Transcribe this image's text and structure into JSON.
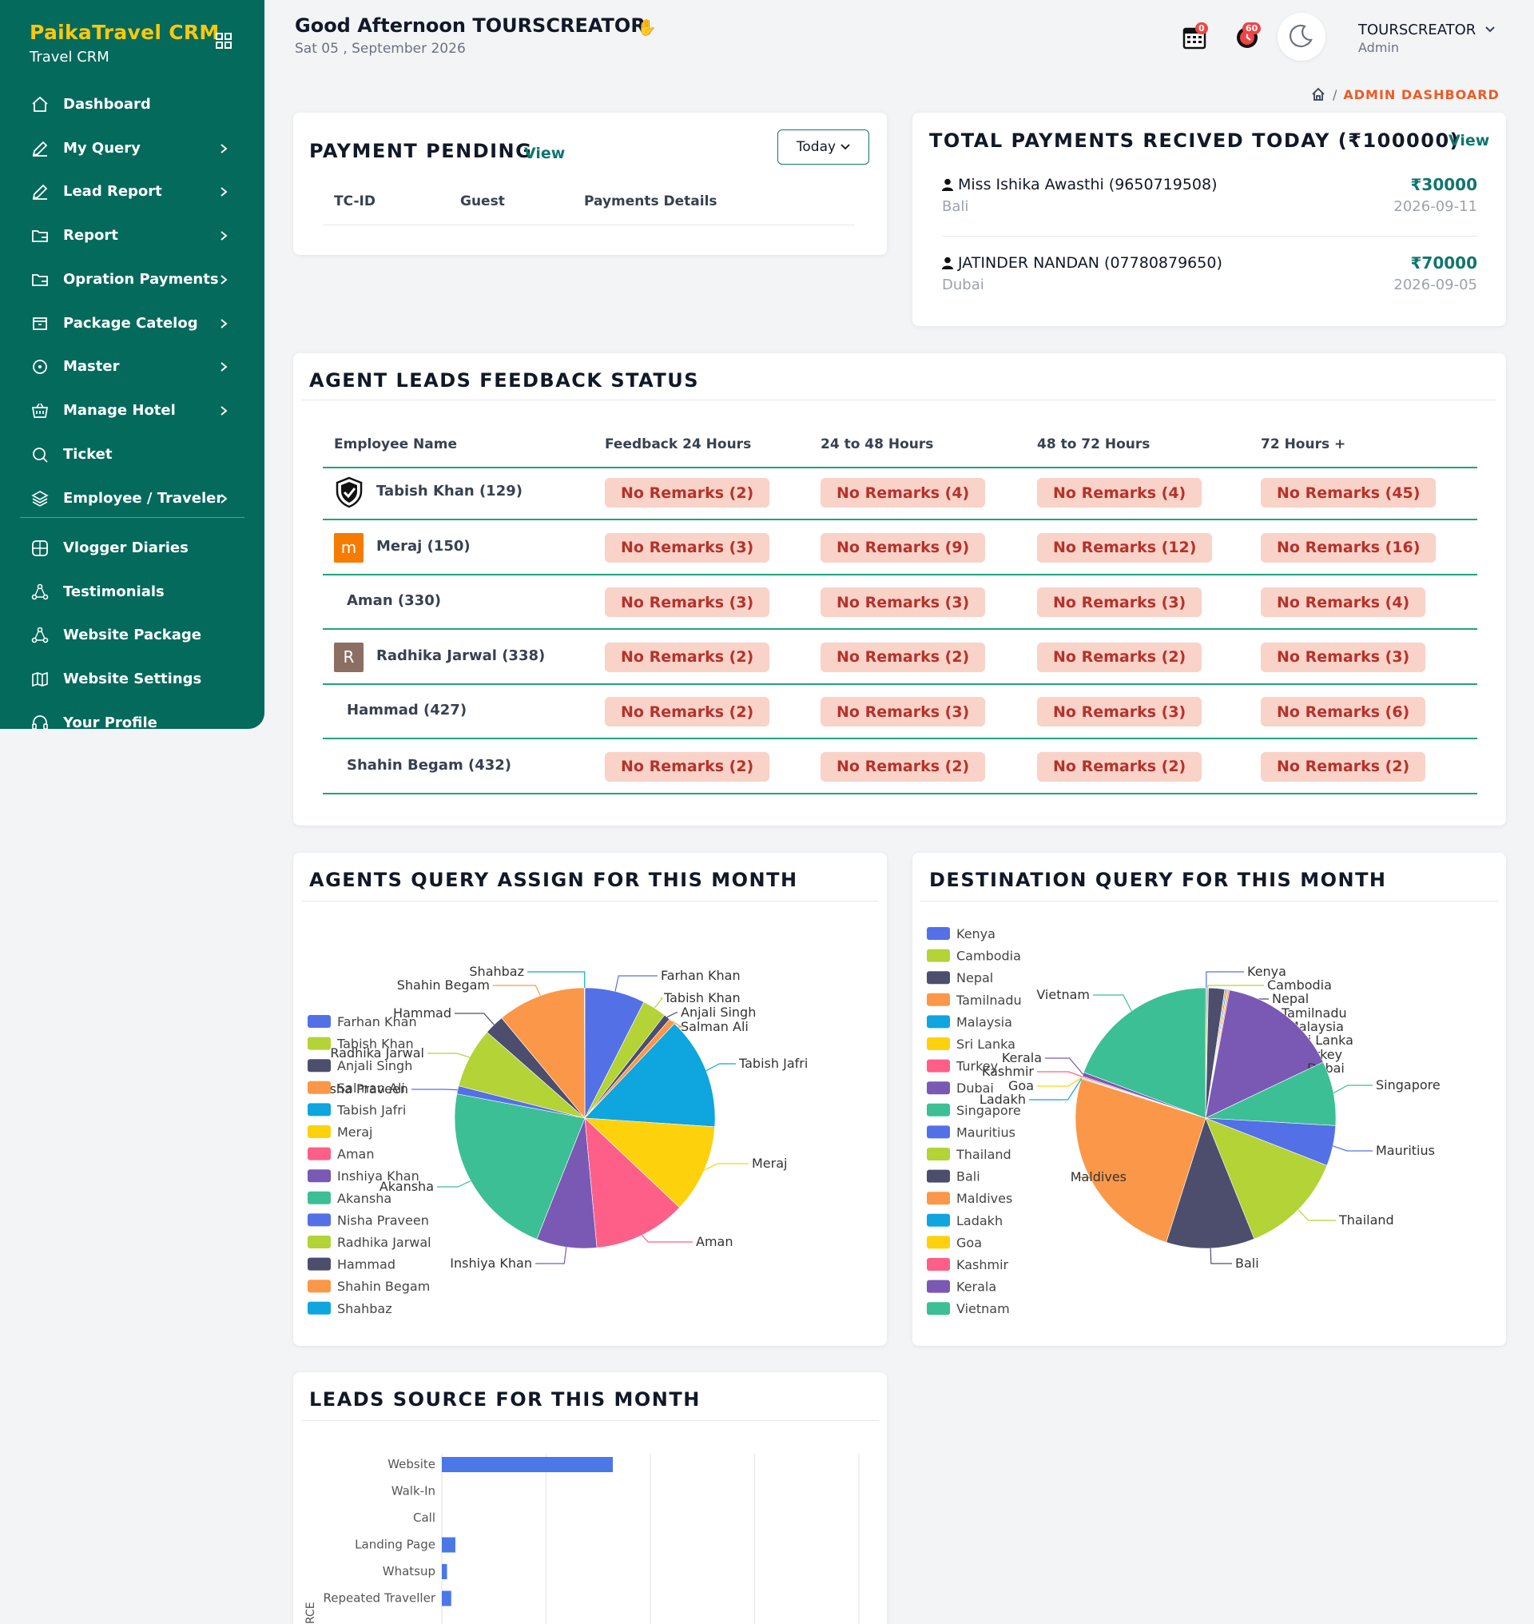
{
  "sidebar": {
    "brand": "PaikaTravel CRM",
    "subtitle": "Travel CRM",
    "items": [
      {
        "label": "Dashboard",
        "icon": "home-icon",
        "chevron": false
      },
      {
        "label": "My Query",
        "icon": "pencil-icon",
        "chevron": true
      },
      {
        "label": "Lead Report",
        "icon": "pencil-icon",
        "chevron": true
      },
      {
        "label": "Report",
        "icon": "folder-icon",
        "chevron": true
      },
      {
        "label": "Opration Payments",
        "icon": "folder-icon",
        "chevron": true
      },
      {
        "label": "Package Catelog",
        "icon": "package-icon",
        "chevron": true
      },
      {
        "label": "Master",
        "icon": "circle-icon",
        "chevron": true
      },
      {
        "label": "Manage Hotel",
        "icon": "basket-icon",
        "chevron": true
      },
      {
        "label": "Ticket",
        "icon": "search-icon",
        "chevron": false
      },
      {
        "label": "Employee / Traveler",
        "icon": "layers-icon",
        "chevron": true
      },
      {
        "label": "Vlogger Diaries",
        "icon": "globe-icon",
        "chevron": false
      },
      {
        "label": "Testimonials",
        "icon": "network-icon",
        "chevron": false
      },
      {
        "label": "Website Package",
        "icon": "network-icon",
        "chevron": false
      },
      {
        "label": "Website Settings",
        "icon": "map-icon",
        "chevron": false
      },
      {
        "label": "Your Profile",
        "icon": "headset-icon",
        "chevron": false
      }
    ]
  },
  "header": {
    "greeting": "Good Afternoon TOURSCREATOR",
    "date": "Sat 05 , September 2026",
    "calendar_badge": "0",
    "alarm_badge": "60",
    "user_name": "TOURSCREATOR",
    "user_role": "Admin"
  },
  "breadcrumb": {
    "current": "ADMIN DASHBOARD"
  },
  "payment_pending": {
    "title": "PAYMENT PENDING",
    "view": "View",
    "filter": "Today",
    "columns": [
      "TC-ID",
      "Guest",
      "Payments Details"
    ]
  },
  "total_payments": {
    "title": "TOTAL PAYMENTS RECIVED TODAY (₹100000)",
    "view": "View",
    "entries": [
      {
        "name": "Miss Ishika Awasthi (9650719508)",
        "place": "Bali",
        "amount": "₹30000",
        "date": "2026-09-11"
      },
      {
        "name": "JATINDER NANDAN (07780879650)",
        "place": "Dubai",
        "amount": "₹70000",
        "date": "2026-09-05"
      }
    ]
  },
  "feedback": {
    "title": "AGENT LEADS FEEDBACK STATUS",
    "columns": [
      "Employee Name",
      "Feedback 24 Hours",
      "24 to 48 Hours",
      "48 to 72 Hours",
      "72 Hours +"
    ],
    "rows": [
      {
        "name": "Tabish Khan (129)",
        "avatar": "shield",
        "cells": [
          "No Remarks (2)",
          "No Remarks (4)",
          "No Remarks (4)",
          "No Remarks (45)"
        ]
      },
      {
        "name": "Meraj (150)",
        "avatar": "m",
        "cells": [
          "No Remarks (3)",
          "No Remarks (9)",
          "No Remarks (12)",
          "No Remarks (16)"
        ]
      },
      {
        "name": "Aman (330)",
        "avatar": "",
        "cells": [
          "No Remarks (3)",
          "No Remarks (3)",
          "No Remarks (3)",
          "No Remarks (4)"
        ]
      },
      {
        "name": "Radhika Jarwal (338)",
        "avatar": "R",
        "cells": [
          "No Remarks (2)",
          "No Remarks (2)",
          "No Remarks (2)",
          "No Remarks (3)"
        ]
      },
      {
        "name": "Hammad (427)",
        "avatar": "",
        "cells": [
          "No Remarks (2)",
          "No Remarks (3)",
          "No Remarks (3)",
          "No Remarks (6)"
        ]
      },
      {
        "name": "Shahin Begam (432)",
        "avatar": "",
        "cells": [
          "No Remarks (2)",
          "No Remarks (2)",
          "No Remarks (2)",
          "No Remarks (2)"
        ]
      }
    ]
  },
  "agents_chart": {
    "title": "AGENTS QUERY ASSIGN FOR THIS MONTH"
  },
  "destination_chart": {
    "title": "DESTINATION QUERY FOR THIS MONTH"
  },
  "leads_chart": {
    "title": "LEADS SOURCE FOR THIS MONTH",
    "yaxis_label": "RCE"
  },
  "chart_data": [
    {
      "type": "pie",
      "title": "AGENTS QUERY ASSIGN FOR THIS MONTH",
      "legend_placement": "left",
      "categories": [
        "Farhan Khan",
        "Tabish Khan",
        "Anjali Singh",
        "Salman Ali",
        "Tabish Jafri",
        "Meraj",
        "Aman",
        "Inshiya Khan",
        "Akansha",
        "Nisha Praveen",
        "Radhika Jarwal",
        "Hammad",
        "Shahin Begam",
        "Shahbaz"
      ],
      "values": [
        7.5,
        3,
        0.8,
        0.8,
        14,
        11,
        11.5,
        7.5,
        22,
        1,
        7.5,
        2.5,
        11,
        0.05
      ],
      "colors": [
        "#5470e6",
        "#b3d336",
        "#4d4e6e",
        "#fb9748",
        "#0fa5df",
        "#fdd20d",
        "#fd5f88",
        "#7a59b4",
        "#3cbf95",
        "#5470e6",
        "#b3d336",
        "#4d4e6e",
        "#fb9748",
        "#0fa5df"
      ]
    },
    {
      "type": "pie",
      "title": "DESTINATION QUERY FOR THIS MONTH",
      "legend_placement": "left",
      "categories": [
        "Kenya",
        "Cambodia",
        "Nepal",
        "Tamilnadu",
        "Malaysia",
        "Sri Lanka",
        "Turkey",
        "Dubai",
        "Singapore",
        "Mauritius",
        "Thailand",
        "Bali",
        "Maldives",
        "Ladakh",
        "Goa",
        "Kashmir",
        "Kerala",
        "Vietnam"
      ],
      "values": [
        0.15,
        0.2,
        2.0,
        0.15,
        0.15,
        0.15,
        0.15,
        15,
        8,
        5,
        13,
        11,
        25,
        0.1,
        0.1,
        0.15,
        0.5,
        19.3
      ],
      "colors": [
        "#5470e6",
        "#b3d336",
        "#4d4e6e",
        "#fb9748",
        "#0fa5df",
        "#fdd20d",
        "#fd5f88",
        "#7a59b4",
        "#3cbf95",
        "#5470e6",
        "#b3d336",
        "#4d4e6e",
        "#fb9748",
        "#0fa5df",
        "#fdd20d",
        "#fd5f88",
        "#7a59b4",
        "#3cbf95"
      ]
    },
    {
      "type": "bar",
      "orientation": "horizontal",
      "title": "LEADS SOURCE FOR THIS MONTH",
      "categories": [
        "Website",
        "Walk-In",
        "Call",
        "Landing Page",
        "Whatsup",
        "Repeated Traveller"
      ],
      "values": [
        82,
        0,
        0,
        6.5,
        2.5,
        4.5
      ],
      "xlim": [
        0,
        200
      ],
      "grid": true,
      "colors": [
        "#4a78e6"
      ]
    }
  ]
}
